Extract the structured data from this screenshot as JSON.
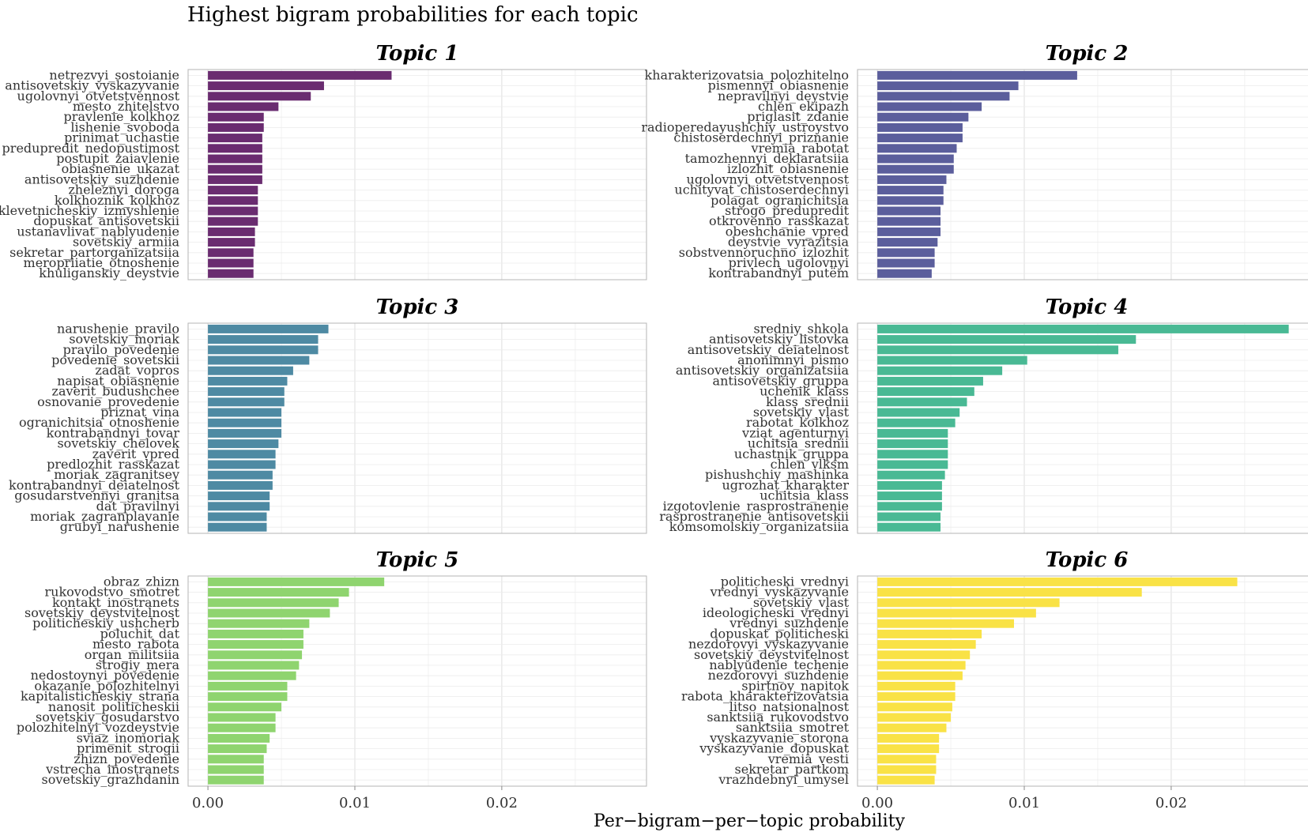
{
  "chart_data": {
    "type": "bar",
    "orientation": "horizontal",
    "title": "Highest bigram probabilities for each topic",
    "xlabel": "Per−bigram−per−topic probability",
    "xticks": [
      "0.00",
      "0.01",
      "0.02"
    ],
    "xlim": [
      -0.00135,
      0.02985
    ],
    "grid": true,
    "facets": [
      {
        "title": "Topic 1",
        "color": "#6a2c70",
        "categories": [
          "netrezvyi_sostoianie",
          "antisovetskiy_vyskazyvanie",
          "ugolovnyi_otvetstvennost",
          "mesto_zhitelstvo",
          "pravlenie_kolkhoz",
          "lishenie_svoboda",
          "prinimat_uchastie",
          "predupredit_nedopustimost",
          "postupit_zaiavlenie",
          "obiasnenie_ukazat",
          "antisovetskiy_suzhdenie",
          "zheleznyi_doroga",
          "kolkhoznik_kolkhoz",
          "klevetnicheskiy_izmyshlenie",
          "dopuskat_antisovetskii",
          "ustanavlivat_nablyudenie",
          "sovetskiy_armiia",
          "sekretar_partorganizatsiia",
          "meropriiatie_otnoshenie",
          "khuliganskiy_deystvie"
        ],
        "values": [
          0.0125,
          0.0079,
          0.007,
          0.0048,
          0.0038,
          0.0038,
          0.0037,
          0.0037,
          0.0037,
          0.0037,
          0.0037,
          0.0034,
          0.0034,
          0.0034,
          0.0034,
          0.0032,
          0.0032,
          0.0031,
          0.0031,
          0.0031
        ]
      },
      {
        "title": "Topic 2",
        "color": "#5b5e9c",
        "categories": [
          "kharakterizovatsia_polozhitelno",
          "pismennyi_obiasnenie",
          "nepravilnyi_deystvie",
          "chlen_ekipazh",
          "priglasit_zdanie",
          "radioperedayushchiy_ustroystvo",
          "chistoserdechnyi_priznanie",
          "vremia_rabotat",
          "tamozhennyi_deklaratsiia",
          "izlozhit_obiasnenie",
          "ugolovnyi_otvetstvennost",
          "uchityvat_chistoserdechnyi",
          "polagat_ogranichitsia",
          "strogo_predupredit",
          "otkrovenno_rasskazat",
          "obeshchanie_vpred",
          "deystvie_vyrazitsia",
          "sobstvennoruchno_izlozhit",
          "privlech_ugolovnyi",
          "kontrabandnyi_putëm"
        ],
        "values": [
          0.0136,
          0.0096,
          0.009,
          0.0071,
          0.0062,
          0.0058,
          0.0058,
          0.0054,
          0.0052,
          0.0052,
          0.0047,
          0.0045,
          0.0045,
          0.0043,
          0.0043,
          0.0043,
          0.0041,
          0.0039,
          0.0039,
          0.0037
        ]
      },
      {
        "title": "Topic 3",
        "color": "#4e8aa3",
        "categories": [
          "narushenie_pravilo",
          "sovetskiy_moriak",
          "pravilo_povedenie",
          "povedenie_sovetskii",
          "zadat_vopros",
          "napisat_obiasnenie",
          "zaverit_budushchee",
          "osnovanie_provedenie",
          "priznat_vina",
          "ogranichitsia_otnoshenie",
          "kontrabandnyi_tovar",
          "sovetskiy_chelovek",
          "zaverit_vpred",
          "predlozhit_rasskazat",
          "moriak_zagranitsey",
          "kontrabandnyi_deiatelnost",
          "gosudarstvennyi_granitsa",
          "dat_pravilnyi",
          "moriak_zagranplavanie",
          "grubyi_narushenie"
        ],
        "values": [
          0.0082,
          0.0075,
          0.0075,
          0.0069,
          0.0058,
          0.0054,
          0.0052,
          0.0052,
          0.005,
          0.005,
          0.005,
          0.0048,
          0.0046,
          0.0046,
          0.0044,
          0.0044,
          0.0042,
          0.0042,
          0.004,
          0.004
        ]
      },
      {
        "title": "Topic 4",
        "color": "#49b994",
        "categories": [
          "sredniy_shkola",
          "antisovetskiy_listovka",
          "antisovetskiy_deiatelnost",
          "anonimnyi_pismo",
          "antisovetskiy_organizatsiia",
          "antisovetskiy_gruppa",
          "uchenik_klass",
          "klass_srednii",
          "sovetskiy_vlast",
          "rabotat_kolkhoz",
          "vziat_agenturnyi",
          "uchitsia_srednii",
          "uchastnik_gruppa",
          "chlen_vlksm",
          "pishushchiy_mashinka",
          "ugrozhat_kharakter",
          "uchitsia_klass",
          "izgotovlenie_rasprostranenie",
          "rasprostranenie_antisovetskii",
          "komsomolskiy_organizatsiia"
        ],
        "values": [
          0.028,
          0.0176,
          0.0164,
          0.0102,
          0.0085,
          0.0072,
          0.0066,
          0.0061,
          0.0056,
          0.0053,
          0.0048,
          0.0048,
          0.0048,
          0.0048,
          0.0046,
          0.0044,
          0.0044,
          0.0044,
          0.0043,
          0.0043
        ]
      },
      {
        "title": "Topic 5",
        "color": "#8fd46f",
        "categories": [
          "obraz_zhizn",
          "rukovodstvo_smotret",
          "kontakt_inostranets",
          "sovetskiy_deystvitelnost",
          "politicheskiy_ushcherb",
          "poluchit_dat",
          "mesto_rabota",
          "organ_militsiia",
          "strogiy_mera",
          "nedostoynyi_povedenie",
          "okazanie_polozhitelnyi",
          "kapitalisticheskiy_strana",
          "nanosit_politicheskii",
          "sovetskiy_gosudarstvo",
          "polozhitelnyi_vozdeystvie",
          "sviaz_inomoriak",
          "primenit_strogii",
          "zhizn_povedenie",
          "vstrecha_inostranets",
          "sovetskiy_grazhdanin"
        ],
        "values": [
          0.012,
          0.0096,
          0.0089,
          0.0083,
          0.0069,
          0.0065,
          0.0065,
          0.0064,
          0.0062,
          0.006,
          0.0054,
          0.0054,
          0.005,
          0.0046,
          0.0046,
          0.0042,
          0.004,
          0.0038,
          0.0038,
          0.0038
        ]
      },
      {
        "title": "Topic 6",
        "color": "#f9e246",
        "categories": [
          "politicheski_vrednyi",
          "vrednyi_vyskazyvanie",
          "sovetskiy_vlast",
          "ideologicheski_vrednyi",
          "vrednyi_suzhdenie",
          "dopuskat_politicheski",
          "nezdorovyi_vyskazyvanie",
          "sovetskiy_deystvitelnost",
          "nablyudenie_techenie",
          "nezdorovyi_suzhdenie",
          "spirtnoy_napitok",
          "rabota_kharakterizovatsia",
          "litso_natsionalnost",
          "sanktsiia_rukovodstvo",
          "sanktsiia_smotret",
          "vyskazyvanie_storona",
          "vyskazyvanie_dopuskat",
          "vremia_vesti",
          "sekretar_partkom",
          "vrazhdebnyi_umysel"
        ],
        "values": [
          0.0245,
          0.018,
          0.0124,
          0.0108,
          0.0093,
          0.0071,
          0.0067,
          0.0063,
          0.006,
          0.0058,
          0.0053,
          0.0053,
          0.0051,
          0.005,
          0.0047,
          0.0042,
          0.0042,
          0.004,
          0.004,
          0.0039
        ]
      }
    ]
  }
}
